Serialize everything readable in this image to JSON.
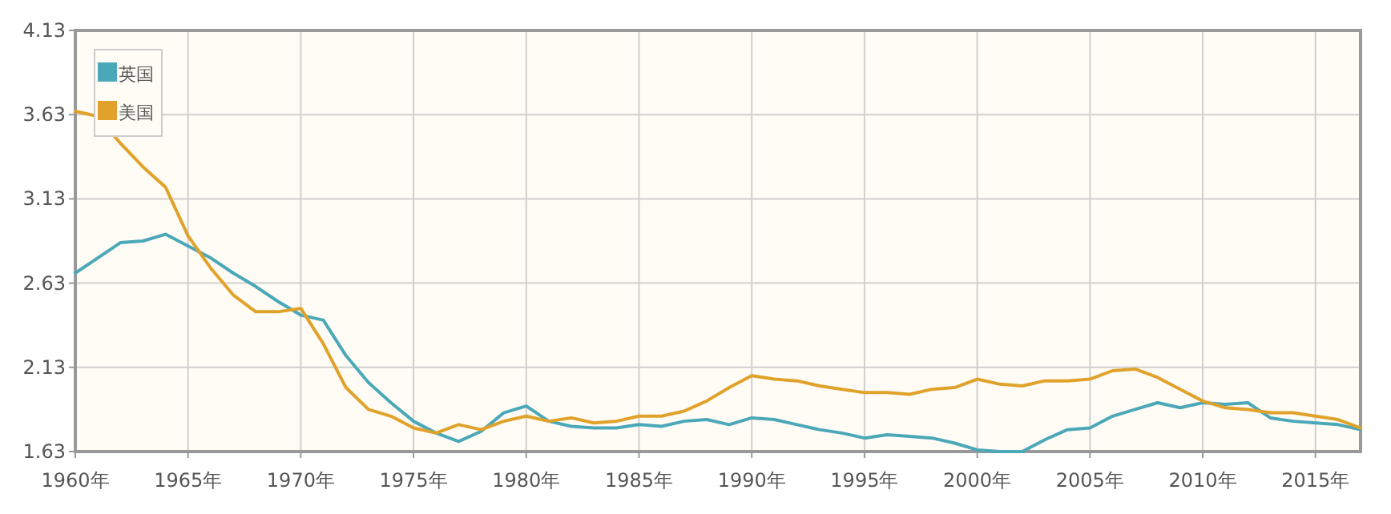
{
  "chart_data": {
    "type": "line",
    "x": [
      1960,
      1961,
      1962,
      1963,
      1964,
      1965,
      1966,
      1967,
      1968,
      1969,
      1970,
      1971,
      1972,
      1973,
      1974,
      1975,
      1976,
      1977,
      1978,
      1979,
      1980,
      1981,
      1982,
      1983,
      1984,
      1985,
      1986,
      1987,
      1988,
      1989,
      1990,
      1991,
      1992,
      1993,
      1994,
      1995,
      1996,
      1997,
      1998,
      1999,
      2000,
      2001,
      2002,
      2003,
      2004,
      2005,
      2006,
      2007,
      2008,
      2009,
      2010,
      2011,
      2012,
      2013,
      2014,
      2015,
      2016,
      2017
    ],
    "series": [
      {
        "name": "英国",
        "color": "#4ba8b8",
        "values": [
          2.69,
          2.78,
          2.87,
          2.88,
          2.92,
          2.85,
          2.78,
          2.69,
          2.61,
          2.52,
          2.44,
          2.41,
          2.2,
          2.04,
          1.92,
          1.81,
          1.74,
          1.69,
          1.75,
          1.86,
          1.9,
          1.81,
          1.78,
          1.77,
          1.77,
          1.79,
          1.78,
          1.81,
          1.82,
          1.79,
          1.83,
          1.82,
          1.79,
          1.76,
          1.74,
          1.71,
          1.73,
          1.72,
          1.71,
          1.68,
          1.64,
          1.63,
          1.63,
          1.7,
          1.76,
          1.77,
          1.84,
          1.88,
          1.92,
          1.89,
          1.92,
          1.91,
          1.92,
          1.83,
          1.81,
          1.8,
          1.79,
          1.76
        ]
      },
      {
        "name": "美国",
        "color": "#e0a22a",
        "values": [
          3.65,
          3.62,
          3.46,
          3.32,
          3.2,
          2.91,
          2.72,
          2.56,
          2.46,
          2.46,
          2.48,
          2.27,
          2.01,
          1.88,
          1.84,
          1.77,
          1.74,
          1.79,
          1.76,
          1.81,
          1.84,
          1.81,
          1.83,
          1.8,
          1.81,
          1.84,
          1.84,
          1.87,
          1.93,
          2.01,
          2.08,
          2.06,
          2.05,
          2.02,
          2.0,
          1.98,
          1.98,
          1.97,
          2.0,
          2.01,
          2.06,
          2.03,
          2.02,
          2.05,
          2.05,
          2.06,
          2.11,
          2.12,
          2.07,
          2.0,
          1.93,
          1.89,
          1.88,
          1.86,
          1.86,
          1.84,
          1.82,
          1.77
        ]
      }
    ],
    "xlim": [
      1960,
      2017
    ],
    "xticks": [
      {
        "value": 1960,
        "label": "1960年"
      },
      {
        "value": 1965,
        "label": "1965年"
      },
      {
        "value": 1970,
        "label": "1970年"
      },
      {
        "value": 1975,
        "label": "1975年"
      },
      {
        "value": 1980,
        "label": "1980年"
      },
      {
        "value": 1985,
        "label": "1985年"
      },
      {
        "value": 1990,
        "label": "1990年"
      },
      {
        "value": 1995,
        "label": "1995年"
      },
      {
        "value": 2000,
        "label": "2000年"
      },
      {
        "value": 2005,
        "label": "2005年"
      },
      {
        "value": 2010,
        "label": "2010年"
      },
      {
        "value": 2015,
        "label": "2015年"
      }
    ],
    "ylim": [
      1.63,
      4.13
    ],
    "yticks": [
      1.63,
      2.13,
      2.63,
      3.13,
      3.63,
      4.13
    ],
    "grid": true,
    "legend": "top left",
    "marker": "none",
    "line_style": "solid"
  }
}
